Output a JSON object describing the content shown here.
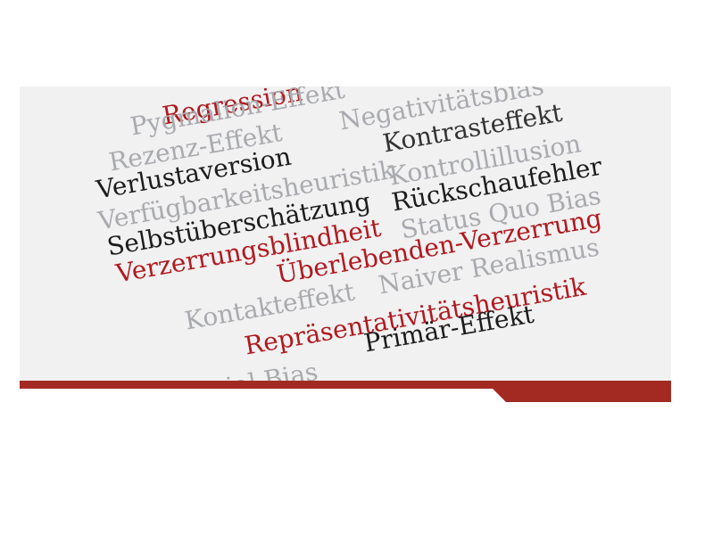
{
  "word_cloud": {
    "words": [
      {
        "text": "Regression",
        "color": "red"
      },
      {
        "text": "Pygmalion-Effekt",
        "color": "gray"
      },
      {
        "text": "Negativitätsbias",
        "color": "gray"
      },
      {
        "text": "Rezenz-Effekt",
        "color": "gray"
      },
      {
        "text": "Kontrasteffekt",
        "color": "dark"
      },
      {
        "text": "Verlustaversion",
        "color": "black"
      },
      {
        "text": "Kontrollillusion",
        "color": "gray"
      },
      {
        "text": "Verfügbarkeitsheuristik",
        "color": "gray"
      },
      {
        "text": "Rückschaufehler",
        "color": "black"
      },
      {
        "text": "Selbstüberschätzung",
        "color": "black"
      },
      {
        "text": "Status Quo Bias",
        "color": "gray"
      },
      {
        "text": "Verzerrungsblindheit",
        "color": "red"
      },
      {
        "text": "Überlebenden-Verzerrung",
        "color": "red"
      },
      {
        "text": "Naiver Realismus",
        "color": "gray"
      },
      {
        "text": "Kontakteffekt",
        "color": "gray"
      },
      {
        "text": "Repräsentativitätsheuristik",
        "color": "red"
      },
      {
        "text": "Primär-Effekt",
        "color": "black"
      },
      {
        "text": "Social Bias",
        "color": "gray"
      }
    ]
  },
  "colors": {
    "red": "#b0191f",
    "black": "#1c1c1c",
    "gray": "#a9aaaf",
    "dark": "#333333",
    "panel_background": "#f1f1f1",
    "stripe": "#a32a22"
  }
}
